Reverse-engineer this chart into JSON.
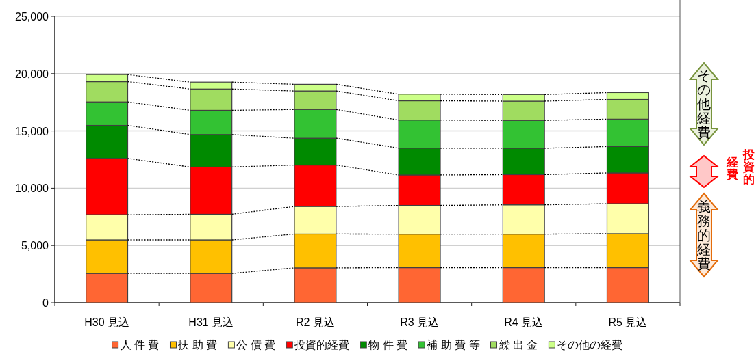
{
  "chart_data": {
    "type": "bar",
    "stacked": true,
    "categories": [
      "H30 見込",
      "H31 見込",
      "R2 見込",
      "R3 見込",
      "R4 見込",
      "R5 見込"
    ],
    "series": [
      {
        "name": "人 件 費",
        "color": "#ff6633",
        "values": [
          2560,
          2560,
          3050,
          3070,
          3070,
          3070
        ]
      },
      {
        "name": "扶 助 費",
        "color": "#ffc000",
        "values": [
          2930,
          2930,
          2950,
          2920,
          2920,
          2960
        ]
      },
      {
        "name": "公 債 費",
        "color": "#ffffaa",
        "values": [
          2200,
          2240,
          2410,
          2510,
          2560,
          2620
        ]
      },
      {
        "name": "投資的経費",
        "color": "#ff0000",
        "values": [
          4910,
          4120,
          3610,
          2660,
          2640,
          2690
        ]
      },
      {
        "name": "物 件 費",
        "color": "#008a00",
        "values": [
          2880,
          2840,
          2350,
          2340,
          2300,
          2300
        ]
      },
      {
        "name": "補 助 費 等",
        "color": "#33c233",
        "values": [
          2050,
          2110,
          2500,
          2450,
          2430,
          2390
        ]
      },
      {
        "name": "繰 出 金",
        "color": "#a0dc60",
        "values": [
          1770,
          1860,
          1620,
          1680,
          1680,
          1720
        ]
      },
      {
        "name": "その他の経費",
        "color": "#ccff88",
        "values": [
          620,
          600,
          580,
          580,
          580,
          600
        ]
      }
    ],
    "ylim": [
      0,
      25000
    ],
    "yticks": [
      0,
      {
        "value": 5000,
        "label": "5,000"
      },
      {
        "value": 10000,
        "label": "10,000"
      },
      {
        "value": 15000,
        "label": "15,000"
      },
      {
        "value": 20000,
        "label": "20,000"
      },
      {
        "value": 25000,
        "label": "25,000"
      }
    ],
    "grid": "y",
    "legend": "bottom",
    "annotations": [
      "その他経費",
      "投資的経費",
      "義務的経費"
    ]
  }
}
